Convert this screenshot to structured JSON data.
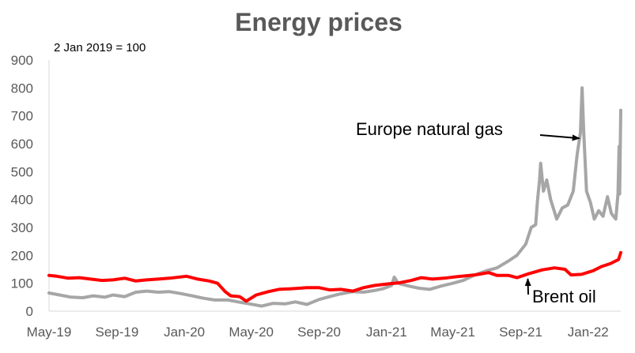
{
  "chart_data": {
    "type": "line",
    "title": "Energy prices",
    "subtitle": "2 Jan 2019 = 100",
    "xlabel": "",
    "ylabel": "",
    "x_ticks": [
      "May-19",
      "Sep-19",
      "Jan-20",
      "May-20",
      "Sep-20",
      "Jan-21",
      "May-21",
      "Sep-21",
      "Jan-22"
    ],
    "y_ticks": [
      0,
      100,
      200,
      300,
      400,
      500,
      600,
      700,
      800,
      900
    ],
    "xlim": [
      "2019-05-01",
      "2022-03-01"
    ],
    "ylim": [
      0,
      900
    ],
    "grid": false,
    "legend": "none",
    "series": [
      {
        "name": "Europe natural gas",
        "color": "#a6a6a6",
        "points": [
          [
            "2019-05-01",
            65
          ],
          [
            "2019-05-20",
            58
          ],
          [
            "2019-06-10",
            50
          ],
          [
            "2019-07-01",
            48
          ],
          [
            "2019-07-20",
            55
          ],
          [
            "2019-08-10",
            50
          ],
          [
            "2019-08-25",
            58
          ],
          [
            "2019-09-15",
            52
          ],
          [
            "2019-10-05",
            68
          ],
          [
            "2019-10-25",
            72
          ],
          [
            "2019-11-15",
            68
          ],
          [
            "2019-12-05",
            70
          ],
          [
            "2019-12-25",
            63
          ],
          [
            "2020-01-15",
            55
          ],
          [
            "2020-02-05",
            46
          ],
          [
            "2020-02-25",
            40
          ],
          [
            "2020-03-20",
            40
          ],
          [
            "2020-04-10",
            32
          ],
          [
            "2020-05-01",
            25
          ],
          [
            "2020-05-20",
            18
          ],
          [
            "2020-06-10",
            28
          ],
          [
            "2020-07-01",
            26
          ],
          [
            "2020-07-20",
            33
          ],
          [
            "2020-08-10",
            24
          ],
          [
            "2020-09-01",
            42
          ],
          [
            "2020-09-20",
            52
          ],
          [
            "2020-10-10",
            62
          ],
          [
            "2020-11-01",
            70
          ],
          [
            "2020-11-20",
            68
          ],
          [
            "2020-12-10",
            74
          ],
          [
            "2020-12-25",
            80
          ],
          [
            "2021-01-10",
            92
          ],
          [
            "2021-01-15",
            122
          ],
          [
            "2021-01-22",
            100
          ],
          [
            "2021-02-10",
            90
          ],
          [
            "2021-03-01",
            82
          ],
          [
            "2021-03-20",
            78
          ],
          [
            "2021-04-10",
            90
          ],
          [
            "2021-05-01",
            100
          ],
          [
            "2021-05-20",
            110
          ],
          [
            "2021-06-10",
            130
          ],
          [
            "2021-07-01",
            145
          ],
          [
            "2021-07-20",
            155
          ],
          [
            "2021-08-10",
            180
          ],
          [
            "2021-08-25",
            200
          ],
          [
            "2021-09-10",
            240
          ],
          [
            "2021-09-20",
            300
          ],
          [
            "2021-09-28",
            310
          ],
          [
            "2021-10-01",
            390
          ],
          [
            "2021-10-05",
            470
          ],
          [
            "2021-10-07",
            530
          ],
          [
            "2021-10-12",
            430
          ],
          [
            "2021-10-18",
            470
          ],
          [
            "2021-10-25",
            400
          ],
          [
            "2021-11-05",
            330
          ],
          [
            "2021-11-15",
            370
          ],
          [
            "2021-11-25",
            380
          ],
          [
            "2021-12-05",
            430
          ],
          [
            "2021-12-12",
            560
          ],
          [
            "2021-12-18",
            640
          ],
          [
            "2021-12-21",
            800
          ],
          [
            "2021-12-24",
            640
          ],
          [
            "2021-12-29",
            430
          ],
          [
            "2022-01-05",
            390
          ],
          [
            "2022-01-12",
            330
          ],
          [
            "2022-01-20",
            360
          ],
          [
            "2022-01-28",
            340
          ],
          [
            "2022-02-05",
            410
          ],
          [
            "2022-02-12",
            350
          ],
          [
            "2022-02-20",
            330
          ],
          [
            "2022-02-24",
            420
          ],
          [
            "2022-02-26",
            590
          ],
          [
            "2022-02-27",
            420
          ],
          [
            "2022-03-01",
            720
          ]
        ]
      },
      {
        "name": "Brent oil",
        "color": "#ff0000",
        "points": [
          [
            "2019-05-01",
            128
          ],
          [
            "2019-05-15",
            125
          ],
          [
            "2019-06-05",
            118
          ],
          [
            "2019-06-25",
            120
          ],
          [
            "2019-07-15",
            115
          ],
          [
            "2019-08-05",
            110
          ],
          [
            "2019-08-25",
            112
          ],
          [
            "2019-09-15",
            118
          ],
          [
            "2019-10-05",
            108
          ],
          [
            "2019-10-25",
            112
          ],
          [
            "2019-11-15",
            115
          ],
          [
            "2019-12-05",
            118
          ],
          [
            "2020-01-05",
            125
          ],
          [
            "2020-01-25",
            115
          ],
          [
            "2020-02-15",
            108
          ],
          [
            "2020-03-01",
            100
          ],
          [
            "2020-03-15",
            70
          ],
          [
            "2020-03-25",
            55
          ],
          [
            "2020-04-10",
            52
          ],
          [
            "2020-04-22",
            36
          ],
          [
            "2020-05-10",
            58
          ],
          [
            "2020-06-01",
            70
          ],
          [
            "2020-06-20",
            78
          ],
          [
            "2020-07-10",
            80
          ],
          [
            "2020-08-10",
            84
          ],
          [
            "2020-09-01",
            84
          ],
          [
            "2020-09-20",
            76
          ],
          [
            "2020-10-10",
            78
          ],
          [
            "2020-11-01",
            72
          ],
          [
            "2020-11-20",
            84
          ],
          [
            "2020-12-10",
            92
          ],
          [
            "2021-01-05",
            98
          ],
          [
            "2021-01-25",
            102
          ],
          [
            "2021-02-15",
            110
          ],
          [
            "2021-03-05",
            120
          ],
          [
            "2021-03-25",
            115
          ],
          [
            "2021-04-15",
            118
          ],
          [
            "2021-05-10",
            124
          ],
          [
            "2021-06-10",
            130
          ],
          [
            "2021-07-05",
            138
          ],
          [
            "2021-07-20",
            128
          ],
          [
            "2021-08-10",
            128
          ],
          [
            "2021-08-25",
            120
          ],
          [
            "2021-09-15",
            134
          ],
          [
            "2021-10-10",
            148
          ],
          [
            "2021-11-01",
            155
          ],
          [
            "2021-11-20",
            150
          ],
          [
            "2021-12-01",
            130
          ],
          [
            "2021-12-20",
            132
          ],
          [
            "2022-01-10",
            145
          ],
          [
            "2022-01-25",
            160
          ],
          [
            "2022-02-10",
            170
          ],
          [
            "2022-02-25",
            185
          ],
          [
            "2022-03-01",
            210
          ]
        ]
      }
    ],
    "annotations": [
      {
        "text": "Europe natural gas",
        "series": "Europe natural gas",
        "point_to": [
          "2021-12-19",
          625
        ]
      },
      {
        "text": "Brent oil",
        "series": "Brent oil",
        "point_to": [
          "2021-09-08",
          130
        ]
      }
    ]
  }
}
